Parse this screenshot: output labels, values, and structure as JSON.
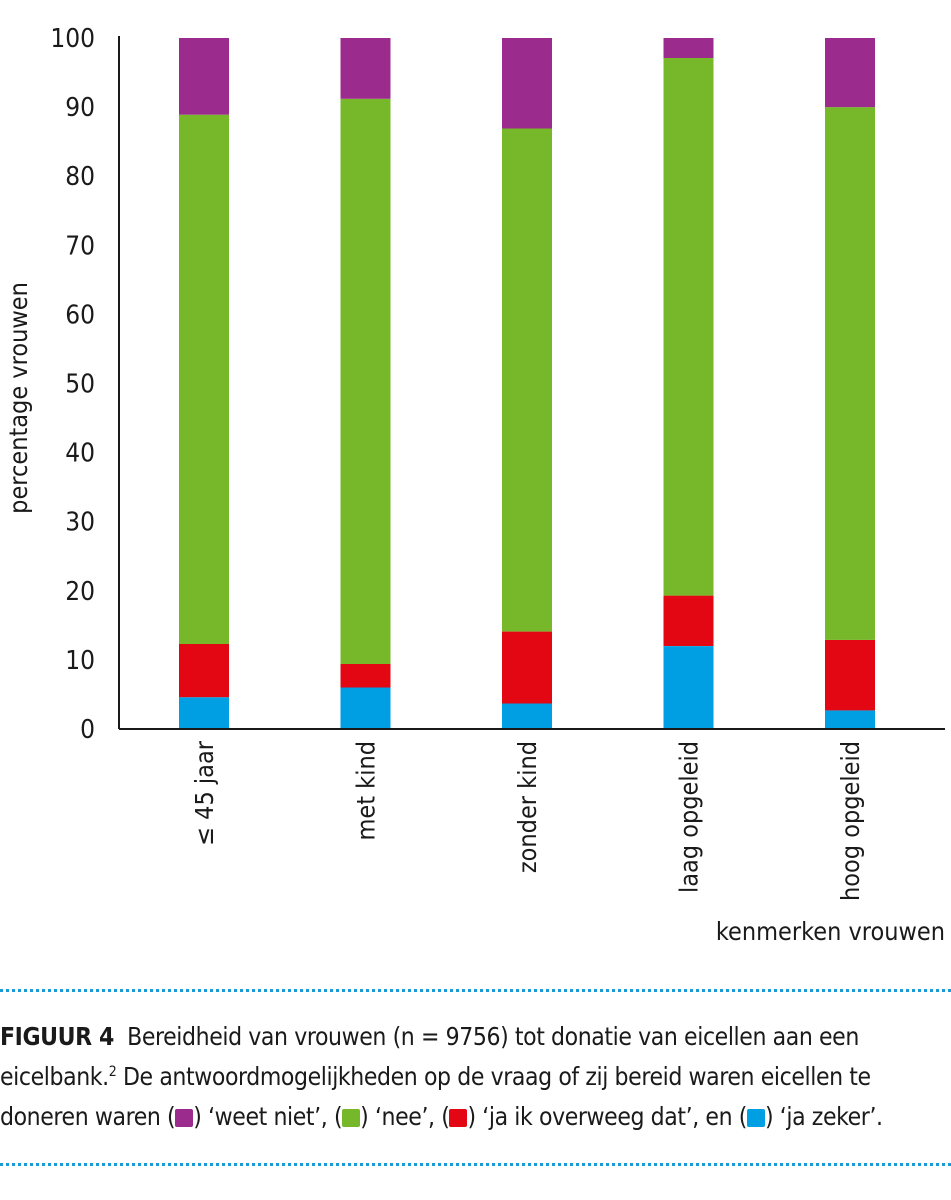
{
  "chart_data": {
    "type": "bar",
    "stacked": true,
    "categories": [
      "≤ 45 jaar",
      "met kind",
      "zonder kind",
      "laag opgeleid",
      "hoog opgeleid"
    ],
    "series": [
      {
        "name": "ja zeker",
        "color": "#009fe3",
        "values": [
          4.6,
          6.0,
          3.7,
          12.0,
          2.7
        ]
      },
      {
        "name": "ja ik overweeg dat",
        "color": "#e30613",
        "values": [
          7.7,
          3.4,
          10.4,
          7.3,
          10.2
        ]
      },
      {
        "name": "nee",
        "color": "#76b82a",
        "values": [
          76.6,
          81.8,
          72.8,
          77.8,
          77.1
        ]
      },
      {
        "name": "weet niet",
        "color": "#9b2c8d",
        "values": [
          11.1,
          8.8,
          13.1,
          2.9,
          10.0
        ]
      }
    ],
    "xlabel": "kenmerken vrouwen",
    "ylabel": "percentage vrouwen",
    "ylim": [
      0,
      100
    ],
    "yticks": [
      0,
      10,
      20,
      30,
      40,
      50,
      60,
      70,
      80,
      90,
      100
    ],
    "grid": false,
    "legend": "in caption"
  },
  "caption": {
    "label": "FIGUUR 4",
    "line1_text": "Bereidheid van vrouwen (n = 9756) tot donatie van eicellen aan een",
    "line2_text": "eicelbank.",
    "line2_sup": "2",
    "line2_rest": " De antwoordmogelijkheden op de vraag of zij bereid waren eicellen te",
    "line3_prefix": "doneren waren (",
    "legend_weet_niet": ") ‘weet niet’, (",
    "legend_nee": ") ‘nee’, (",
    "legend_overweeg": ") ‘ja ik overweeg dat’, en (",
    "legend_zeker": ") ‘ja zeker’."
  }
}
